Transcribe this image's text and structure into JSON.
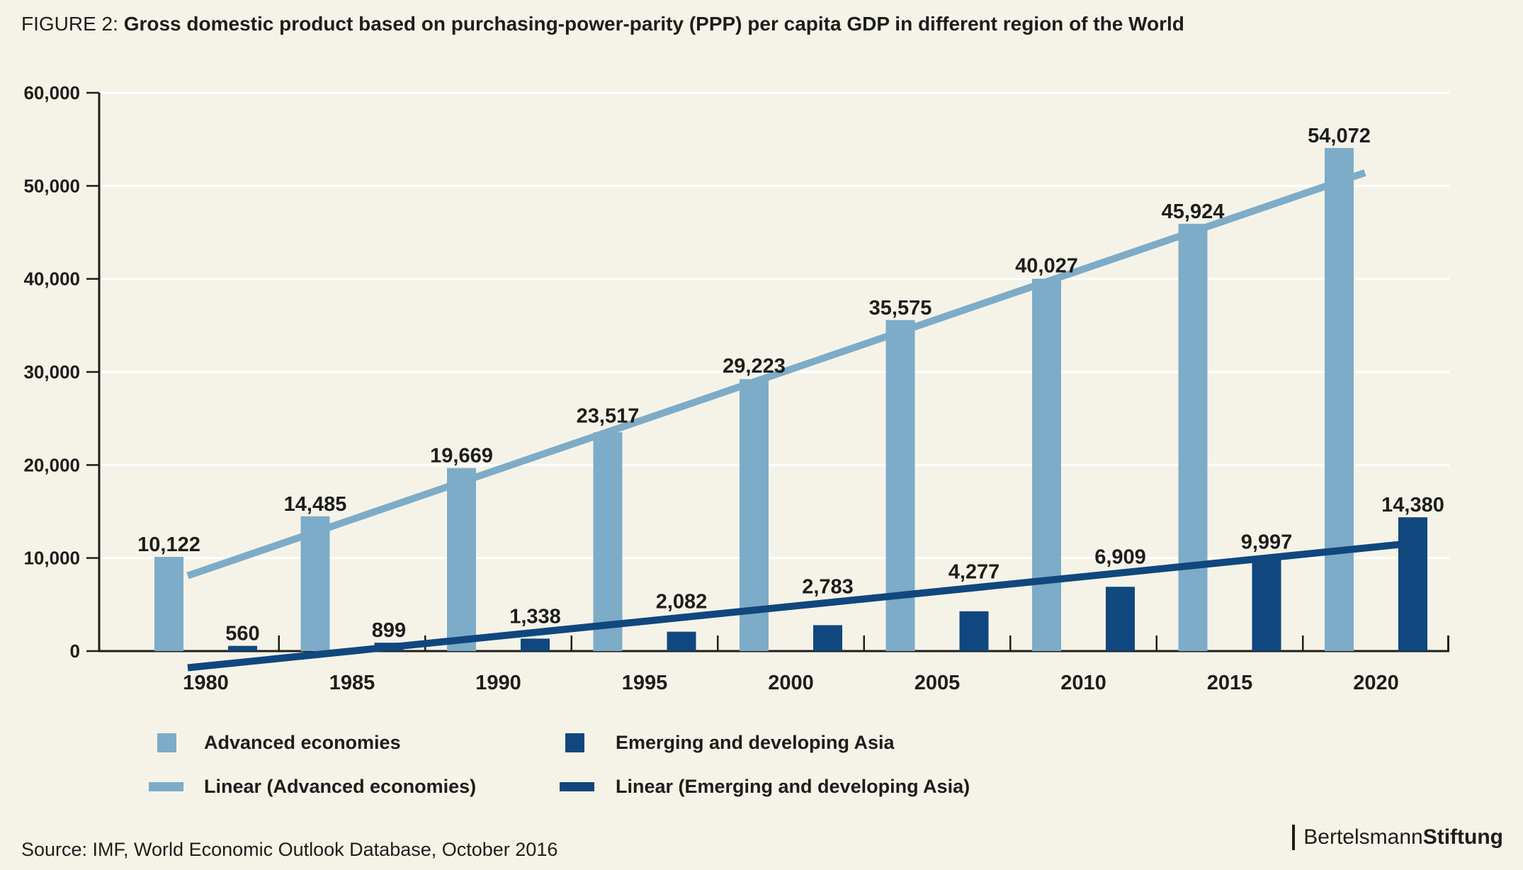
{
  "figure": {
    "label": "FIGURE 2:",
    "title": "Gross domestic product based on purchasing-power-parity (PPP) per capita GDP in different region of the World"
  },
  "chart_data": {
    "type": "bar",
    "title": "Gross domestic product based on purchasing-power-parity (PPP) per capita GDP in different region of the World",
    "categories": [
      "1980",
      "1985",
      "1990",
      "1995",
      "2000",
      "2005",
      "2010",
      "2015",
      "2020"
    ],
    "series": [
      {
        "name": "Advanced economies",
        "color": "#7dacc8",
        "values": [
          10122,
          14485,
          19669,
          23517,
          29223,
          35575,
          40027,
          45924,
          54072
        ],
        "labels": [
          "10,122",
          "14,485",
          "19,669",
          "23,517",
          "29,223",
          "35,575",
          "40,027",
          "45,924",
          "54,072"
        ]
      },
      {
        "name": "Emerging and developing Asia",
        "color": "#10477e",
        "values": [
          560,
          899,
          1338,
          2082,
          2783,
          4277,
          6909,
          9997,
          14380
        ],
        "labels": [
          "560",
          "899",
          "1,338",
          "2,082",
          "2,783",
          "4,277",
          "6,909",
          "9,997",
          "14,380"
        ]
      }
    ],
    "trendlines": [
      {
        "name": "Linear (Advanced economies)",
        "series": "Advanced economies",
        "value_at_first_category": 8764,
        "slope_per_category": 5381.5
      },
      {
        "name": "Linear (Emerging and developing Asia)",
        "series": "Emerging and developing Asia",
        "value_at_first_category": -1591,
        "slope_per_category": 1598.5
      }
    ],
    "xlabel": "",
    "ylabel": "",
    "ylim": [
      0,
      60000
    ],
    "ytick_step": 10000,
    "yticklabels": [
      "0",
      "10,000",
      "20,000",
      "30,000",
      "40,000",
      "50,000",
      "60,000"
    ],
    "grid": "horizontal",
    "gridline_color": "#ffffff",
    "axis_color": "#1d1d1b",
    "legend_position": "bottom"
  },
  "legend": {
    "items": [
      {
        "label": "Advanced economies",
        "swatch": "square",
        "series": 0
      },
      {
        "label": "Emerging and developing Asia",
        "swatch": "square",
        "series": 1
      },
      {
        "label": "Linear (Advanced economies)",
        "swatch": "line",
        "series": 0
      },
      {
        "label": "Linear (Emerging and developing Asia)",
        "swatch": "line",
        "series": 1
      }
    ]
  },
  "source": "Source: IMF, World Economic Outlook Database, October 2016",
  "logo": {
    "prefix": "Bertelsmann",
    "suffix": "Stiftung"
  }
}
